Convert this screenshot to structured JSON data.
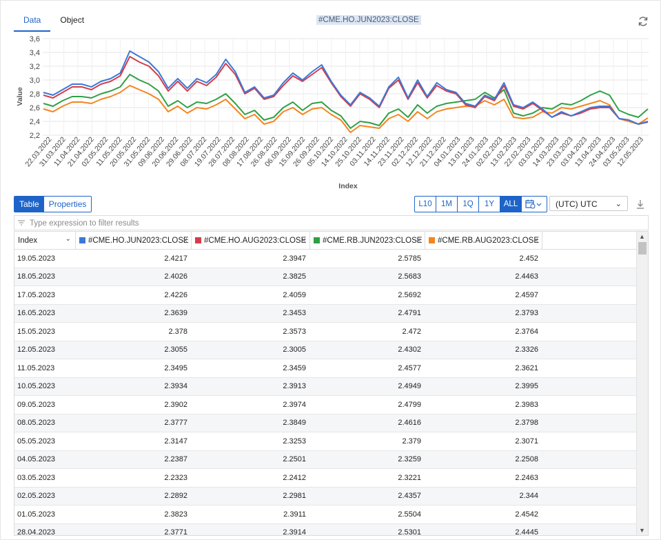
{
  "tabs": {
    "data": "Data",
    "object": "Object"
  },
  "header": {
    "title": "#CME.HO.JUN2023:CLOSE"
  },
  "icons": {
    "refresh": "refresh-icon",
    "calendar": "calendar-icon",
    "download": "download-icon",
    "filter": "filter-icon",
    "sort": "chevron-down-icon",
    "close": "close-icon"
  },
  "chart_data": {
    "type": "line",
    "ylabel": "Value",
    "xlabel": "Index",
    "ylim": [
      2.2,
      3.6
    ],
    "yticks": [
      "2,2",
      "2,4",
      "2,6",
      "2,8",
      "3,0",
      "3,2",
      "3,4",
      "3,6"
    ],
    "ytick_values": [
      2.2,
      2.4,
      2.6,
      2.8,
      3.0,
      3.2,
      3.4,
      3.6
    ],
    "xticks": [
      "22.03.2022",
      "31.03.2022",
      "11.04.2022",
      "21.04.2022",
      "02.05.2022",
      "11.05.2022",
      "20.05.2022",
      "31.05.2022",
      "09.06.2022",
      "20.06.2022",
      "29.06.2022",
      "08.07.2022",
      "19.07.2022",
      "28.07.2022",
      "08.08.2022",
      "17.08.2022",
      "26.08.2022",
      "06.09.2022",
      "15.09.2022",
      "26.09.2022",
      "05.10.2022",
      "14.10.2022",
      "25.10.2022",
      "03.11.2022",
      "14.11.2022",
      "23.11.2022",
      "02.12.2022",
      "12.12.2022",
      "21.12.2022",
      "04.01.2023",
      "13.01.2023",
      "24.01.2023",
      "02.02.2023",
      "13.02.2023",
      "22.02.2023",
      "03.03.2023",
      "14.03.2023",
      "23.03.2023",
      "03.04.2023",
      "13.04.2023",
      "24.04.2023",
      "03.05.2023",
      "12.05.2023"
    ],
    "grid": true,
    "colors": [
      "#3c78d8",
      "#d63c4a",
      "#2ea043",
      "#f5841f"
    ],
    "series": [
      {
        "name": "#CME.HO.JUN2023:CLOSE",
        "values": [
          2.82,
          2.78,
          2.86,
          2.94,
          2.94,
          2.9,
          2.98,
          3.02,
          3.1,
          3.42,
          3.34,
          3.26,
          3.12,
          2.88,
          3.02,
          2.88,
          3.02,
          2.96,
          3.08,
          3.3,
          3.12,
          2.82,
          2.9,
          2.74,
          2.78,
          2.96,
          3.1,
          3.0,
          3.12,
          3.22,
          2.98,
          2.78,
          2.64,
          2.82,
          2.74,
          2.62,
          2.9,
          3.04,
          2.74,
          3.0,
          2.76,
          2.96,
          2.86,
          2.82,
          2.66,
          2.62,
          2.78,
          2.72,
          2.96,
          2.64,
          2.6,
          2.68,
          2.58,
          2.46,
          2.54,
          2.48,
          2.54,
          2.6,
          2.62,
          2.62,
          2.44,
          2.42,
          2.36,
          2.4
        ]
      },
      {
        "name": "#CME.HO.AUG2023:CLOSE",
        "values": [
          2.78,
          2.74,
          2.82,
          2.9,
          2.9,
          2.86,
          2.94,
          2.98,
          3.06,
          3.34,
          3.26,
          3.2,
          3.06,
          2.84,
          2.98,
          2.84,
          2.98,
          2.92,
          3.04,
          3.24,
          3.08,
          2.8,
          2.88,
          2.72,
          2.76,
          2.92,
          3.06,
          2.98,
          3.08,
          3.18,
          2.96,
          2.76,
          2.62,
          2.8,
          2.72,
          2.6,
          2.88,
          3.0,
          2.72,
          2.96,
          2.74,
          2.92,
          2.84,
          2.8,
          2.64,
          2.6,
          2.76,
          2.7,
          2.92,
          2.62,
          2.58,
          2.66,
          2.56,
          2.46,
          2.52,
          2.48,
          2.52,
          2.58,
          2.6,
          2.6,
          2.44,
          2.42,
          2.36,
          2.39
        ]
      },
      {
        "name": "#CME.RB.JUN2023:CLOSE",
        "values": [
          2.66,
          2.62,
          2.7,
          2.76,
          2.76,
          2.74,
          2.8,
          2.84,
          2.9,
          3.08,
          3.0,
          2.94,
          2.84,
          2.62,
          2.7,
          2.6,
          2.68,
          2.66,
          2.72,
          2.8,
          2.66,
          2.5,
          2.56,
          2.42,
          2.46,
          2.6,
          2.68,
          2.56,
          2.66,
          2.68,
          2.56,
          2.48,
          2.3,
          2.4,
          2.38,
          2.34,
          2.52,
          2.58,
          2.46,
          2.64,
          2.52,
          2.62,
          2.66,
          2.68,
          2.7,
          2.72,
          2.82,
          2.74,
          2.86,
          2.52,
          2.48,
          2.52,
          2.6,
          2.58,
          2.66,
          2.64,
          2.7,
          2.78,
          2.84,
          2.78,
          2.56,
          2.5,
          2.46,
          2.58
        ]
      },
      {
        "name": "#CME.RB.AUG2023:CLOSE",
        "values": [
          2.58,
          2.54,
          2.62,
          2.68,
          2.68,
          2.66,
          2.72,
          2.76,
          2.82,
          2.92,
          2.86,
          2.8,
          2.72,
          2.54,
          2.62,
          2.52,
          2.6,
          2.58,
          2.64,
          2.72,
          2.58,
          2.44,
          2.5,
          2.36,
          2.4,
          2.54,
          2.6,
          2.5,
          2.58,
          2.6,
          2.5,
          2.42,
          2.24,
          2.34,
          2.32,
          2.3,
          2.44,
          2.5,
          2.4,
          2.54,
          2.44,
          2.54,
          2.58,
          2.6,
          2.62,
          2.62,
          2.7,
          2.64,
          2.72,
          2.46,
          2.44,
          2.46,
          2.54,
          2.52,
          2.6,
          2.58,
          2.62,
          2.66,
          2.7,
          2.64,
          2.44,
          2.4,
          2.36,
          2.45
        ]
      }
    ]
  },
  "toolbar": {
    "views": [
      "Table",
      "Properties"
    ],
    "ranges": [
      "L10",
      "1M",
      "1Q",
      "1Y",
      "ALL"
    ],
    "active_range": "ALL",
    "timezone": "(UTC) UTC"
  },
  "filter": {
    "placeholder": "Type expression to filter results"
  },
  "table": {
    "columns": [
      {
        "label": "Index",
        "swatch": ""
      },
      {
        "label": "#CME.HO.JUN2023:CLOSE",
        "swatch": "#3c78d8"
      },
      {
        "label": "#CME.HO.AUG2023:CLOSE",
        "swatch": "#d63c4a"
      },
      {
        "label": "#CME.RB.JUN2023:CLOSE",
        "swatch": "#2ea043"
      },
      {
        "label": "#CME.RB.AUG2023:CLOSE",
        "swatch": "#f5841f"
      }
    ],
    "rows": [
      [
        "19.05.2023",
        "2.4217",
        "2.3947",
        "2.5785",
        "2.452"
      ],
      [
        "18.05.2023",
        "2.4026",
        "2.3825",
        "2.5683",
        "2.4463"
      ],
      [
        "17.05.2023",
        "2.4226",
        "2.4059",
        "2.5692",
        "2.4597"
      ],
      [
        "16.05.2023",
        "2.3639",
        "2.3453",
        "2.4791",
        "2.3793"
      ],
      [
        "15.05.2023",
        "2.378",
        "2.3573",
        "2.472",
        "2.3764"
      ],
      [
        "12.05.2023",
        "2.3055",
        "2.3005",
        "2.4302",
        "2.3326"
      ],
      [
        "11.05.2023",
        "2.3495",
        "2.3459",
        "2.4577",
        "2.3621"
      ],
      [
        "10.05.2023",
        "2.3934",
        "2.3913",
        "2.4949",
        "2.3995"
      ],
      [
        "09.05.2023",
        "2.3902",
        "2.3974",
        "2.4799",
        "2.3983"
      ],
      [
        "08.05.2023",
        "2.3777",
        "2.3849",
        "2.4616",
        "2.3798"
      ],
      [
        "05.05.2023",
        "2.3147",
        "2.3253",
        "2.379",
        "2.3071"
      ],
      [
        "04.05.2023",
        "2.2387",
        "2.2501",
        "2.3259",
        "2.2508"
      ],
      [
        "03.05.2023",
        "2.2323",
        "2.2412",
        "2.3221",
        "2.2463"
      ],
      [
        "02.05.2023",
        "2.2892",
        "2.2981",
        "2.4357",
        "2.344"
      ],
      [
        "01.05.2023",
        "2.3823",
        "2.3911",
        "2.5504",
        "2.4542"
      ],
      [
        "28.04.2023",
        "2.3771",
        "2.3914",
        "2.5301",
        "2.4445"
      ]
    ]
  }
}
